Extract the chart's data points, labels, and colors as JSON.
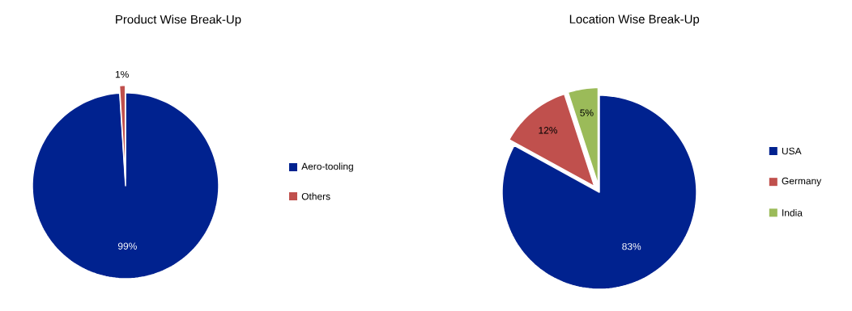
{
  "chart_data": [
    {
      "type": "pie",
      "title": "Product Wise Break-Up",
      "categories": [
        "Aero-tooling",
        "Others"
      ],
      "values": [
        99,
        1
      ],
      "value_labels": [
        "99%",
        "1%"
      ],
      "colors": [
        "#00228f",
        "#c0504d"
      ],
      "legend": "right"
    },
    {
      "type": "pie",
      "title": "Location Wise Break-Up",
      "categories": [
        "USA",
        "Germany",
        "India"
      ],
      "values": [
        83,
        12,
        5
      ],
      "value_labels": [
        "83%",
        "12%",
        "5%"
      ],
      "colors": [
        "#00228f",
        "#c0504d",
        "#9bbb59"
      ],
      "legend": "right"
    }
  ]
}
